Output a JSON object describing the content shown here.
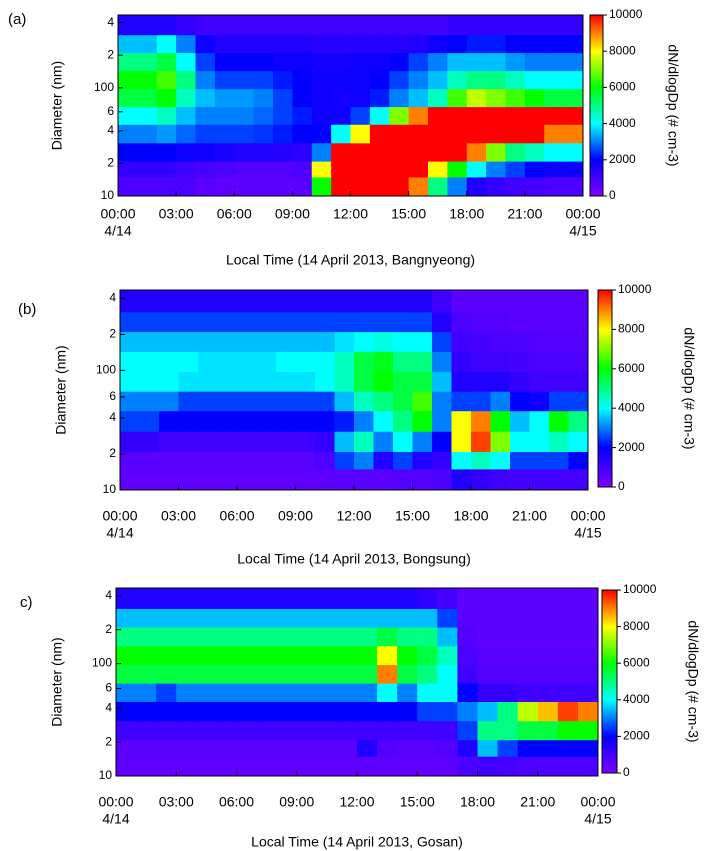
{
  "chart_data": [
    {
      "type": "heatmap",
      "panel_label": "(a)",
      "xlabel": "Local Time (14 April 2013, Bangnyeong)",
      "ylabel": "Diameter (nm)",
      "xlim": [
        0,
        24
      ],
      "ylim": [
        10,
        470
      ],
      "ylog": true,
      "x_bins": [
        0,
        1,
        2,
        3,
        4,
        5,
        6,
        7,
        8,
        9,
        10,
        11,
        12,
        13,
        14,
        15,
        16,
        17,
        18,
        19,
        20,
        21,
        22,
        23,
        24
      ],
      "y_bins": [
        10,
        15,
        21,
        31,
        46,
        67,
        98,
        144,
        211,
        309,
        470
      ],
      "xticks": [
        {
          "value": 0,
          "label": "00:00"
        },
        {
          "value": 3,
          "label": "03:00"
        },
        {
          "value": 6,
          "label": "06:00"
        },
        {
          "value": 9,
          "label": "09:00"
        },
        {
          "value": 12,
          "label": "12:00"
        },
        {
          "value": 15,
          "label": "15:00"
        },
        {
          "value": 18,
          "label": "18:00"
        },
        {
          "value": 21,
          "label": "21:00"
        },
        {
          "value": 24,
          "label": "00:00"
        }
      ],
      "xtick_dates": [
        {
          "value": 0,
          "label": "4/14"
        },
        {
          "value": 24,
          "label": "4/15"
        }
      ],
      "yticks": [
        10,
        {
          "value": 20,
          "label": "2"
        },
        {
          "value": 40,
          "label": "4"
        },
        {
          "value": 60,
          "label": "6"
        },
        100,
        {
          "value": 200,
          "label": "2"
        },
        {
          "value": 400,
          "label": "4"
        }
      ],
      "colorbar": {
        "label": "dN/dlogDp (# cm-3)",
        "lim": [
          0,
          10000
        ],
        "ticks": [
          0,
          2000,
          4000,
          6000,
          8000,
          10000
        ]
      },
      "colormap": [
        "#7f00ff",
        "#0000ff",
        "#00ffff",
        "#00ff00",
        "#ffff00",
        "#ff0000"
      ],
      "values": [
        [
          800,
          800,
          800,
          800,
          600,
          500,
          500,
          500,
          500,
          600,
          6000,
          10000,
          10000,
          10000,
          10000,
          9000,
          5000,
          3000,
          1500,
          1200,
          1000,
          900,
          800,
          800
        ],
        [
          1200,
          1200,
          1200,
          1000,
          900,
          800,
          700,
          700,
          700,
          800,
          8000,
          10000,
          10000,
          10000,
          10000,
          10000,
          8000,
          6000,
          4000,
          3000,
          2500,
          2000,
          1800,
          1800
        ],
        [
          2000,
          2000,
          2000,
          1800,
          1800,
          1600,
          1500,
          1500,
          1400,
          1300,
          3000,
          10000,
          10000,
          10000,
          10000,
          10000,
          10000,
          10000,
          9000,
          7000,
          5000,
          4500,
          4000,
          4000
        ],
        [
          3000,
          3000,
          3200,
          2800,
          2500,
          2500,
          2500,
          2400,
          2200,
          2000,
          2000,
          4000,
          8000,
          10000,
          10000,
          10000,
          10000,
          10000,
          10000,
          10000,
          10000,
          10000,
          9000,
          9000
        ],
        [
          4000,
          4000,
          4500,
          3500,
          3000,
          3000,
          3000,
          2800,
          2500,
          2200,
          1800,
          1800,
          2500,
          4000,
          7000,
          9000,
          10000,
          10000,
          10000,
          10000,
          10000,
          10000,
          10000,
          10000
        ],
        [
          5500,
          5500,
          6000,
          4500,
          3500,
          3200,
          3200,
          3000,
          2500,
          2000,
          1800,
          1700,
          1800,
          2200,
          3000,
          3500,
          4500,
          6500,
          7500,
          7000,
          6500,
          6000,
          5500,
          5500
        ],
        [
          6000,
          6000,
          6500,
          5000,
          3000,
          2500,
          2500,
          2500,
          2200,
          2000,
          1800,
          1800,
          1800,
          2000,
          2500,
          3000,
          3500,
          4500,
          5000,
          5000,
          4500,
          4000,
          4000,
          4000
        ],
        [
          5000,
          5000,
          5500,
          4000,
          2500,
          2000,
          2000,
          2000,
          1800,
          1800,
          1700,
          1700,
          1800,
          1800,
          2000,
          2500,
          3000,
          3500,
          3500,
          3500,
          3200,
          3000,
          3000,
          3000
        ],
        [
          3500,
          3500,
          4000,
          3000,
          1800,
          1500,
          1500,
          1500,
          1500,
          1500,
          1400,
          1400,
          1400,
          1400,
          1400,
          1500,
          1800,
          2000,
          2200,
          2200,
          2000,
          2000,
          2000,
          2000
        ],
        [
          1500,
          1500,
          1500,
          1200,
          1000,
          1000,
          1000,
          1000,
          1000,
          1000,
          1000,
          1000,
          1000,
          1000,
          1000,
          1000,
          1000,
          1200,
          1200,
          1200,
          1200,
          1200,
          1200,
          1200
        ]
      ]
    },
    {
      "type": "heatmap",
      "panel_label": "(b)",
      "xlabel": "Local Time (14 April 2013, Bongsung)",
      "ylabel": "Diameter (nm)",
      "xlim": [
        0,
        24
      ],
      "ylim": [
        10,
        470
      ],
      "ylog": true,
      "x_bins": [
        0,
        1,
        2,
        3,
        4,
        5,
        6,
        7,
        8,
        9,
        10,
        11,
        12,
        13,
        14,
        15,
        16,
        17,
        18,
        19,
        20,
        21,
        22,
        23,
        24
      ],
      "y_bins": [
        10,
        15,
        21,
        31,
        46,
        67,
        98,
        144,
        211,
        309,
        470
      ],
      "xticks": [
        {
          "value": 0,
          "label": "00:00"
        },
        {
          "value": 3,
          "label": "03:00"
        },
        {
          "value": 6,
          "label": "06:00"
        },
        {
          "value": 9,
          "label": "09:00"
        },
        {
          "value": 12,
          "label": "12:00"
        },
        {
          "value": 15,
          "label": "15:00"
        },
        {
          "value": 18,
          "label": "18:00"
        },
        {
          "value": 21,
          "label": "21:00"
        },
        {
          "value": 24,
          "label": "00:00"
        }
      ],
      "xtick_dates": [
        {
          "value": 0,
          "label": "4/14"
        },
        {
          "value": 24,
          "label": "4/15"
        }
      ],
      "yticks": [
        10,
        {
          "value": 20,
          "label": "2"
        },
        {
          "value": 40,
          "label": "4"
        },
        {
          "value": 60,
          "label": "6"
        },
        100,
        {
          "value": 200,
          "label": "2"
        },
        {
          "value": 400,
          "label": "4"
        }
      ],
      "colorbar": {
        "label": "dN/dlogDp (# cm-3)",
        "lim": [
          0,
          10000
        ],
        "ticks": [
          0,
          2000,
          4000,
          6000,
          8000,
          10000
        ]
      },
      "colormap": [
        "#7f00ff",
        "#0000ff",
        "#00ffff",
        "#00ff00",
        "#ffff00",
        "#ff0000"
      ],
      "values": [
        [
          500,
          500,
          500,
          500,
          500,
          500,
          500,
          500,
          500,
          500,
          500,
          600,
          600,
          600,
          700,
          700,
          800,
          1500,
          1200,
          1000,
          900,
          900,
          900,
          900
        ],
        [
          600,
          600,
          600,
          600,
          600,
          600,
          600,
          600,
          600,
          600,
          800,
          2500,
          3000,
          1500,
          2500,
          1500,
          1200,
          4000,
          4500,
          4000,
          2500,
          2500,
          2500,
          2000
        ],
        [
          1200,
          1200,
          1000,
          1000,
          1000,
          1000,
          1000,
          1000,
          1000,
          1000,
          1200,
          3500,
          4500,
          3000,
          4000,
          3000,
          2000,
          8000,
          9500,
          7000,
          4000,
          4000,
          4500,
          4000
        ],
        [
          2500,
          2500,
          2000,
          2000,
          2000,
          2000,
          2000,
          2000,
          2000,
          2000,
          2000,
          2200,
          3000,
          4000,
          5000,
          6000,
          3000,
          8000,
          9000,
          6000,
          3500,
          4000,
          6000,
          5000
        ],
        [
          3000,
          3000,
          3000,
          2500,
          2500,
          2500,
          2500,
          2500,
          2500,
          2500,
          2500,
          3500,
          4500,
          5000,
          5500,
          6500,
          3000,
          2500,
          2500,
          3000,
          2000,
          1800,
          2500,
          2500
        ],
        [
          4000,
          4000,
          4000,
          3800,
          3800,
          3800,
          3800,
          3800,
          3800,
          3800,
          4000,
          4500,
          5500,
          6000,
          5500,
          5500,
          3500,
          1500,
          1500,
          1500,
          1200,
          1000,
          1000,
          1000
        ],
        [
          4000,
          4000,
          4000,
          4000,
          3800,
          3800,
          3800,
          3800,
          4000,
          4000,
          4000,
          4500,
          5500,
          5800,
          5000,
          5000,
          3000,
          1200,
          1000,
          1000,
          900,
          800,
          800,
          800
        ],
        [
          3500,
          3500,
          3500,
          3500,
          3500,
          3500,
          3500,
          3500,
          3500,
          3500,
          3500,
          3800,
          4000,
          4200,
          4000,
          4000,
          2500,
          1000,
          900,
          800,
          800,
          700,
          700,
          700
        ],
        [
          2500,
          2500,
          2500,
          2500,
          2500,
          2500,
          2500,
          2500,
          2500,
          2500,
          2500,
          2500,
          2500,
          2500,
          2500,
          2500,
          1500,
          800,
          700,
          700,
          600,
          600,
          600,
          600
        ],
        [
          1500,
          1500,
          1500,
          1500,
          1500,
          1500,
          1500,
          1500,
          1500,
          1500,
          1500,
          1500,
          1500,
          1500,
          1500,
          1500,
          1000,
          600,
          600,
          600,
          600,
          600,
          600,
          600
        ]
      ]
    },
    {
      "type": "heatmap",
      "panel_label": "c)",
      "xlabel": "Local Time (14 April 2013, Gosan)",
      "ylabel": "Diameter (nm)",
      "xlim": [
        0,
        24
      ],
      "ylim": [
        10,
        470
      ],
      "ylog": true,
      "x_bins": [
        0,
        1,
        2,
        3,
        4,
        5,
        6,
        7,
        8,
        9,
        10,
        11,
        12,
        13,
        14,
        15,
        16,
        17,
        18,
        19,
        20,
        21,
        22,
        23,
        24
      ],
      "y_bins": [
        10,
        15,
        21,
        31,
        46,
        67,
        98,
        144,
        211,
        309,
        470
      ],
      "xticks": [
        {
          "value": 0,
          "label": "00:00"
        },
        {
          "value": 3,
          "label": "03:00"
        },
        {
          "value": 6,
          "label": "06:00"
        },
        {
          "value": 9,
          "label": "09:00"
        },
        {
          "value": 12,
          "label": "12:00"
        },
        {
          "value": 15,
          "label": "15:00"
        },
        {
          "value": 18,
          "label": "18:00"
        },
        {
          "value": 21,
          "label": "21:00"
        },
        {
          "value": 24,
          "label": "00:00"
        }
      ],
      "xtick_dates": [
        {
          "value": 0,
          "label": "4/14"
        },
        {
          "value": 24,
          "label": "4/15"
        }
      ],
      "yticks": [
        10,
        {
          "value": 20,
          "label": "2"
        },
        {
          "value": 40,
          "label": "4"
        },
        {
          "value": 60,
          "label": "6"
        },
        100,
        {
          "value": 200,
          "label": "2"
        },
        {
          "value": 400,
          "label": "4"
        }
      ],
      "colorbar": {
        "label": "dN/dlogDp (# cm-3)",
        "lim": [
          0,
          10000
        ],
        "ticks": [
          0,
          2000,
          4000,
          6000,
          8000,
          10000
        ]
      },
      "colormap": [
        "#7f00ff",
        "#0000ff",
        "#00ffff",
        "#00ff00",
        "#ffff00",
        "#ff0000"
      ],
      "values": [
        [
          500,
          500,
          500,
          500,
          500,
          500,
          500,
          500,
          500,
          500,
          500,
          500,
          500,
          500,
          500,
          500,
          500,
          800,
          1000,
          900,
          800,
          800,
          800,
          800
        ],
        [
          600,
          600,
          600,
          600,
          600,
          600,
          600,
          600,
          600,
          600,
          600,
          600,
          1500,
          700,
          600,
          600,
          700,
          1500,
          3500,
          2500,
          2000,
          2000,
          2000,
          2000
        ],
        [
          1000,
          1000,
          1000,
          1000,
          1000,
          1000,
          1000,
          1000,
          1000,
          1000,
          1000,
          1000,
          1000,
          1000,
          1000,
          1000,
          1000,
          2500,
          5000,
          5000,
          5500,
          5500,
          6000,
          6000
        ],
        [
          2000,
          2000,
          2000,
          2000,
          2000,
          2000,
          2000,
          2000,
          2000,
          2000,
          2000,
          2000,
          2000,
          2000,
          2000,
          2500,
          2500,
          3000,
          3500,
          5000,
          7500,
          8500,
          9500,
          9000
        ],
        [
          3000,
          3000,
          2500,
          3000,
          3000,
          3000,
          3000,
          3000,
          3000,
          3000,
          3000,
          3000,
          3000,
          4000,
          3000,
          4000,
          4000,
          2000,
          1200,
          1200,
          1000,
          1000,
          1000,
          1000
        ],
        [
          5500,
          5500,
          5500,
          5500,
          5500,
          5500,
          5500,
          5500,
          5500,
          5500,
          5500,
          5500,
          5500,
          9000,
          5500,
          5000,
          4000,
          1000,
          700,
          700,
          700,
          700,
          700,
          700
        ],
        [
          6000,
          6000,
          6000,
          6000,
          6000,
          6000,
          6000,
          6000,
          6000,
          6000,
          6000,
          6000,
          6000,
          8000,
          6000,
          5500,
          4500,
          800,
          600,
          600,
          600,
          600,
          600,
          600
        ],
        [
          5000,
          5000,
          5000,
          5000,
          5000,
          5000,
          5000,
          5000,
          5000,
          5000,
          5000,
          5000,
          5000,
          5500,
          5000,
          5000,
          3500,
          700,
          500,
          500,
          500,
          500,
          500,
          500
        ],
        [
          3500,
          3500,
          3500,
          3500,
          3500,
          3500,
          3500,
          3500,
          3500,
          3500,
          3500,
          3500,
          3500,
          3500,
          3500,
          3500,
          2500,
          600,
          500,
          500,
          500,
          500,
          500,
          500
        ],
        [
          1500,
          1500,
          1500,
          1500,
          1500,
          1500,
          1500,
          1500,
          1500,
          1500,
          1500,
          1500,
          1500,
          1500,
          1500,
          1200,
          900,
          500,
          500,
          500,
          500,
          500,
          500,
          500
        ]
      ]
    }
  ]
}
